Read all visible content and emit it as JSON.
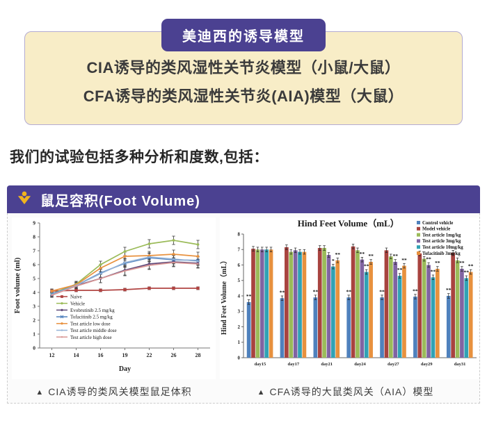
{
  "header_badge": {
    "label": "美迪西的诱导模型"
  },
  "models_box": {
    "lines": [
      "CIA诱导的类风湿性关节炎模型（小鼠/大鼠）",
      "CFA诱导的类风湿性关节炎(AIA)模型（大鼠）"
    ]
  },
  "intro_text": "我们的试验包括多种分析和度数,包括：",
  "panel": {
    "title": "鼠足容积(Foot Volume)",
    "icon": "medicilon-person-icon",
    "caption_bullet": "▲",
    "captions": [
      "CIA诱导的类风关模型鼠足体积",
      "CFA诱导的大鼠类风关（AIA）模型"
    ]
  },
  "colors": {
    "accent_purple": "#4b4191",
    "icon_yellow": "#f0b41e",
    "cream_box_bg": "#f8edc7",
    "cream_box_border": "#b3abd2"
  },
  "chart_data": [
    {
      "type": "line",
      "title": "",
      "xlabel": "Day",
      "ylabel": "Foot volume (ml)",
      "x": [
        12,
        14,
        16,
        19,
        22,
        26,
        28
      ],
      "ylim": [
        0,
        9
      ],
      "yticks": [
        0,
        1,
        2,
        3,
        4,
        5,
        6,
        7,
        8,
        9
      ],
      "legend_position": "lower-left",
      "series": [
        {
          "name": "Naive",
          "color": "#b04341",
          "marker": "square",
          "values": [
            4.1,
            4.15,
            4.15,
            4.2,
            4.3,
            4.3,
            4.3
          ],
          "err": [
            0.1,
            0.1,
            0.1,
            0.1,
            0.1,
            0.1,
            0.1
          ]
        },
        {
          "name": "Vehicle",
          "color": "#9bbb59",
          "marker": "dot",
          "values": [
            3.9,
            4.6,
            6.0,
            6.95,
            7.5,
            7.75,
            7.45
          ],
          "err": [
            0.15,
            0.2,
            0.25,
            0.3,
            0.3,
            0.3,
            0.3
          ]
        },
        {
          "name": "Evobrutinib 2.5 mg/kg",
          "color": "#5f497a",
          "marker": "dot",
          "values": [
            3.8,
            4.5,
            5.0,
            5.6,
            6.05,
            6.2,
            6.1
          ],
          "err": [
            0.15,
            0.2,
            0.3,
            0.35,
            0.35,
            0.3,
            0.3
          ]
        },
        {
          "name": "Tofacitinib 2.5 mg/kg",
          "color": "#4f81bd",
          "marker": "x",
          "values": [
            3.9,
            4.5,
            5.4,
            6.1,
            6.5,
            6.35,
            6.3
          ],
          "err": [
            0.15,
            0.2,
            0.3,
            0.3,
            0.3,
            0.3,
            0.3
          ]
        },
        {
          "name": "Test article low dose",
          "color": "#e8913e",
          "marker": "dot",
          "values": [
            4.1,
            4.55,
            5.75,
            6.6,
            6.65,
            6.75,
            6.6
          ],
          "err": [
            0.15,
            0.2,
            0.25,
            0.3,
            0.3,
            0.3,
            0.3
          ]
        },
        {
          "name": "Test article middle dose",
          "color": "#95b3d7",
          "marker": "none",
          "values": [
            3.85,
            4.5,
            5.35,
            6.15,
            6.55,
            6.4,
            6.25
          ],
          "err": [
            0.15,
            0.2,
            0.3,
            0.3,
            0.3,
            0.3,
            0.3
          ]
        },
        {
          "name": "Test article high dose",
          "color": "#d99694",
          "marker": "none",
          "values": [
            3.8,
            4.45,
            5.0,
            5.55,
            5.95,
            6.15,
            6.05
          ],
          "err": [
            0.15,
            0.2,
            0.3,
            0.35,
            0.3,
            0.3,
            0.3
          ]
        }
      ]
    },
    {
      "type": "bar",
      "title": "Hind Feet Volume（mL）",
      "ylabel": "Hind Feet Volume（mL）",
      "categories": [
        "day15",
        "day17",
        "day21",
        "day24",
        "day27",
        "day29",
        "day31"
      ],
      "ylim": [
        0,
        8
      ],
      "yticks": [
        0,
        1,
        2,
        3,
        4,
        5,
        6,
        7,
        8
      ],
      "err": 0.15,
      "legend_position": "upper-right",
      "series": [
        {
          "name": "Control vehicle",
          "color": "#4f81bd",
          "values": [
            3.6,
            3.85,
            3.9,
            3.9,
            3.9,
            3.95,
            4.0
          ],
          "sig": [
            "**",
            "**",
            "**",
            "**",
            "**",
            "**",
            "**"
          ]
        },
        {
          "name": "Model vehicle",
          "color": "#a8433f",
          "values": [
            7.05,
            7.15,
            7.1,
            7.2,
            6.95,
            6.75,
            6.8
          ],
          "sig": [
            "",
            "",
            "",
            "",
            "",
            "",
            ""
          ]
        },
        {
          "name": "Test article 1mg/kg",
          "color": "#9bbb59",
          "values": [
            7.0,
            6.85,
            7.1,
            6.95,
            6.55,
            6.4,
            6.3
          ],
          "sig": [
            "",
            "",
            "",
            "",
            "",
            "",
            ""
          ]
        },
        {
          "name": "Test article 3mg/kg",
          "color": "#8064a2",
          "values": [
            7.0,
            6.95,
            6.65,
            6.35,
            6.2,
            6.0,
            5.75
          ],
          "sig": [
            "",
            "",
            "",
            "**",
            "**",
            "**",
            "**"
          ]
        },
        {
          "name": "Test article 10mg/kg",
          "color": "#31a2b5",
          "values": [
            7.0,
            6.85,
            5.9,
            5.55,
            5.3,
            5.2,
            5.15
          ],
          "sig": [
            "",
            "",
            "*",
            "**",
            "**",
            "**",
            "**"
          ]
        },
        {
          "name": "Tofacitinib 3mg/kg",
          "color": "#e8913e",
          "values": [
            7.0,
            6.85,
            6.3,
            6.2,
            5.95,
            5.75,
            5.55
          ],
          "sig": [
            "",
            "",
            "**",
            "**",
            "**",
            "**",
            "**"
          ]
        }
      ]
    }
  ]
}
